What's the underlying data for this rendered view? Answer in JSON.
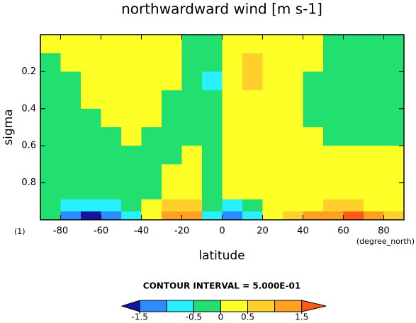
{
  "chart_data": {
    "type": "contour",
    "title": "northwardward wind [m s-1]",
    "xlabel": "latitude",
    "ylabel": "sigma",
    "xunit": "(degree_north)",
    "yunit": "(1)",
    "x": [
      -85,
      -75,
      -65,
      -55,
      -45,
      -35,
      -25,
      -15,
      -5,
      5,
      15,
      25,
      35,
      45,
      55,
      65,
      75,
      85
    ],
    "y": [
      0.05,
      0.15,
      0.25,
      0.35,
      0.45,
      0.55,
      0.65,
      0.75,
      0.85,
      0.93,
      0.98
    ],
    "z": [
      [
        0.1,
        0.2,
        0.2,
        0.2,
        0.2,
        0.2,
        0.1,
        -0.1,
        -0.2,
        0.1,
        0.2,
        0.2,
        0.2,
        0.1,
        -0.1,
        -0.1,
        -0.1,
        -0.1
      ],
      [
        -0.1,
        0.2,
        0.3,
        0.3,
        0.3,
        0.2,
        0.1,
        -0.2,
        -0.4,
        0.2,
        0.5,
        0.3,
        0.2,
        0.1,
        -0.1,
        -0.2,
        -0.2,
        -0.1
      ],
      [
        -0.1,
        -0.1,
        0.2,
        0.3,
        0.3,
        0.2,
        0.1,
        -0.3,
        -0.7,
        0.3,
        0.8,
        0.4,
        0.1,
        -0.1,
        -0.2,
        -0.2,
        -0.2,
        -0.1
      ],
      [
        -0.1,
        -0.2,
        0.1,
        0.3,
        0.3,
        0.2,
        -0.1,
        -0.2,
        -0.4,
        0.2,
        0.4,
        0.3,
        0.1,
        -0.1,
        -0.2,
        -0.2,
        -0.1,
        -0.1
      ],
      [
        -0.1,
        -0.2,
        -0.1,
        0.1,
        0.2,
        0.1,
        -0.1,
        -0.2,
        -0.2,
        0.1,
        0.2,
        0.2,
        0.1,
        -0.1,
        -0.1,
        -0.1,
        -0.1,
        -0.1
      ],
      [
        -0.1,
        -0.2,
        -0.2,
        -0.1,
        0.1,
        -0.1,
        -0.1,
        -0.1,
        -0.1,
        0.1,
        0.1,
        0.1,
        0.1,
        0.1,
        -0.1,
        -0.1,
        -0.1,
        -0.1
      ],
      [
        -0.1,
        -0.1,
        -0.2,
        -0.2,
        -0.1,
        -0.1,
        -0.1,
        0.1,
        -0.1,
        0.1,
        0.1,
        0.1,
        0.1,
        0.1,
        0.1,
        0.1,
        0.1,
        0.1
      ],
      [
        -0.1,
        -0.1,
        -0.1,
        -0.1,
        -0.1,
        -0.1,
        0.1,
        0.2,
        -0.1,
        0.1,
        0.2,
        0.1,
        0.1,
        0.1,
        0.1,
        0.1,
        0.1,
        0.1
      ],
      [
        -0.1,
        -0.1,
        -0.1,
        -0.1,
        -0.1,
        -0.1,
        0.2,
        0.3,
        -0.1,
        0.1,
        0.3,
        0.1,
        0.1,
        0.1,
        0.1,
        0.1,
        0.1,
        0.1
      ],
      [
        -0.2,
        -0.6,
        -0.8,
        -0.6,
        -0.3,
        0.1,
        0.6,
        0.8,
        -0.5,
        -0.6,
        -0.2,
        0.1,
        0.2,
        0.4,
        0.6,
        0.6,
        0.4,
        0.2
      ],
      [
        -0.5,
        -1.5,
        -1.8,
        -1.4,
        -0.8,
        0.3,
        1.2,
        1.4,
        -0.8,
        -1.2,
        -0.6,
        0.2,
        0.6,
        1.0,
        1.4,
        1.6,
        1.2,
        0.5
      ]
    ],
    "xlim": [
      -90,
      90
    ],
    "xticks": [
      -80,
      -60,
      -40,
      -20,
      0,
      20,
      40,
      60,
      80
    ],
    "ylim": [
      0,
      1
    ],
    "yticks": [
      0.2,
      0.4,
      0.6,
      0.8
    ],
    "y_inverted": true,
    "levels": [
      -1.5,
      -1,
      -0.5,
      0,
      0.5,
      1,
      1.5
    ],
    "colors": [
      "#1414a0",
      "#2c8cff",
      "#28f0ff",
      "#22e070",
      "#ffff28",
      "#ffd02c",
      "#ffa020",
      "#ff5a14"
    ],
    "colorbar_title": "CONTOUR INTERVAL = 5.000E-01",
    "clim": [
      -1.83,
      1.95
    ],
    "cticks": [
      -1.5,
      -0.5,
      0,
      0.5,
      1.5
    ]
  }
}
